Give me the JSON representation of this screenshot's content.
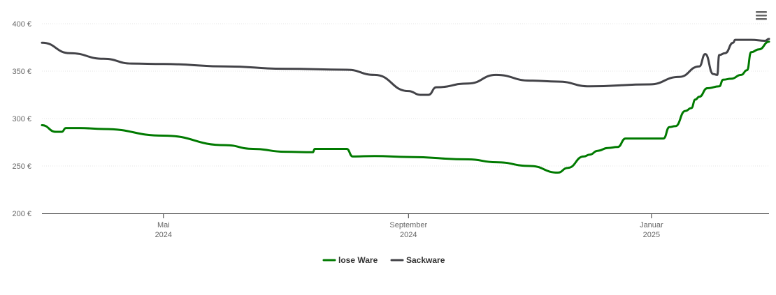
{
  "menu": {
    "icon": "hamburger-menu-icon"
  },
  "chart_data": {
    "type": "line",
    "title": "",
    "xlabel": "",
    "ylabel": "",
    "ylim": [
      200,
      400
    ],
    "xlim": [
      "2024-03-01",
      "2025-03-01"
    ],
    "y_ticks": [
      {
        "value": 200,
        "label": "200 €"
      },
      {
        "value": 250,
        "label": "250 €"
      },
      {
        "value": 300,
        "label": "300 €"
      },
      {
        "value": 350,
        "label": "350 €"
      },
      {
        "value": 400,
        "label": "400 €"
      }
    ],
    "x_ticks": [
      {
        "date": "2024-05-01",
        "label": "Mai",
        "year": "2024"
      },
      {
        "date": "2024-09-01",
        "label": "September",
        "year": "2024"
      },
      {
        "date": "2025-01-01",
        "label": "Januar",
        "year": "2025"
      }
    ],
    "grid": true,
    "legend": "bottom-center",
    "series": [
      {
        "name": "lose Ware",
        "color": "#007a00",
        "points": [
          [
            "2024-03-01",
            293
          ],
          [
            "2024-03-08",
            286
          ],
          [
            "2024-03-11",
            286
          ],
          [
            "2024-03-13",
            290
          ],
          [
            "2024-03-20",
            290
          ],
          [
            "2024-04-01",
            289
          ],
          [
            "2024-05-01",
            282
          ],
          [
            "2024-06-01",
            272
          ],
          [
            "2024-06-15",
            268
          ],
          [
            "2024-07-01",
            265
          ],
          [
            "2024-07-15",
            264.5
          ],
          [
            "2024-07-16",
            268
          ],
          [
            "2024-08-01",
            268
          ],
          [
            "2024-08-04",
            260
          ],
          [
            "2024-08-15",
            260.5
          ],
          [
            "2024-09-01",
            259.5
          ],
          [
            "2024-10-01",
            257
          ],
          [
            "2024-10-15",
            254
          ],
          [
            "2024-11-01",
            250
          ],
          [
            "2024-11-15",
            243
          ],
          [
            "2024-11-20",
            248
          ],
          [
            "2024-11-28",
            260
          ],
          [
            "2024-12-01",
            262
          ],
          [
            "2024-12-05",
            266
          ],
          [
            "2024-12-10",
            269
          ],
          [
            "2024-12-15",
            270
          ],
          [
            "2024-12-19",
            279
          ],
          [
            "2025-01-07",
            279
          ],
          [
            "2025-01-10",
            291
          ],
          [
            "2025-01-13",
            292
          ],
          [
            "2025-01-18",
            308
          ],
          [
            "2025-01-21",
            311
          ],
          [
            "2025-01-23",
            320
          ],
          [
            "2025-01-25",
            323
          ],
          [
            "2025-01-29",
            332
          ],
          [
            "2025-02-04",
            334
          ],
          [
            "2025-02-06",
            341
          ],
          [
            "2025-02-10",
            342
          ],
          [
            "2025-02-15",
            346
          ],
          [
            "2025-02-18",
            351
          ],
          [
            "2025-02-20",
            370
          ],
          [
            "2025-02-24",
            373
          ],
          [
            "2025-03-01",
            381
          ]
        ]
      },
      {
        "name": "Sackware",
        "color": "#434348",
        "points": [
          [
            "2024-03-01",
            380
          ],
          [
            "2024-03-15",
            369
          ],
          [
            "2024-04-01",
            363
          ],
          [
            "2024-04-15",
            358
          ],
          [
            "2024-05-01",
            357.5
          ],
          [
            "2024-06-01",
            355
          ],
          [
            "2024-07-01",
            352.5
          ],
          [
            "2024-08-01",
            351.5
          ],
          [
            "2024-08-15",
            346
          ],
          [
            "2024-09-01",
            329
          ],
          [
            "2024-09-07",
            325
          ],
          [
            "2024-09-11",
            325
          ],
          [
            "2024-09-15",
            333
          ],
          [
            "2024-10-01",
            337
          ],
          [
            "2024-10-15",
            346
          ],
          [
            "2024-11-01",
            340
          ],
          [
            "2024-11-15",
            339
          ],
          [
            "2024-12-01",
            334
          ],
          [
            "2024-12-31",
            336
          ],
          [
            "2025-01-15",
            344
          ],
          [
            "2025-01-25",
            355
          ],
          [
            "2025-01-28",
            368
          ],
          [
            "2025-02-01",
            347
          ],
          [
            "2025-02-03",
            346
          ],
          [
            "2025-02-04",
            367
          ],
          [
            "2025-02-07",
            369
          ],
          [
            "2025-02-11",
            380
          ],
          [
            "2025-02-12",
            383
          ],
          [
            "2025-02-20",
            383
          ],
          [
            "2025-02-27",
            382
          ],
          [
            "2025-03-01",
            384
          ]
        ]
      }
    ]
  }
}
